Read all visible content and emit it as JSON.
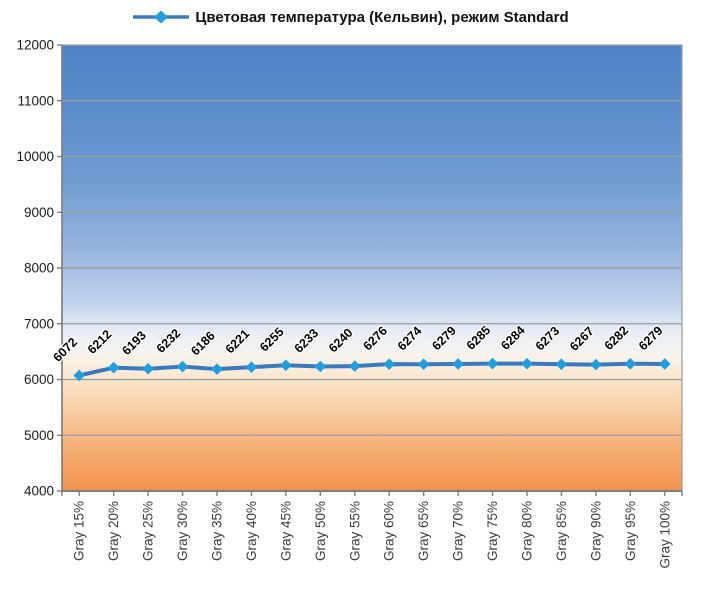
{
  "legend": {
    "label": "Цветовая температура (Кельвин), режим Standard"
  },
  "chart_data": {
    "type": "line",
    "title": "",
    "legend_position": "top",
    "grid": true,
    "categories": [
      "Gray 15%",
      "Gray 20%",
      "Gray 25%",
      "Gray 30%",
      "Gray 35%",
      "Gray 40%",
      "Gray 45%",
      "Gray 50%",
      "Gray 55%",
      "Gray 60%",
      "Gray 65%",
      "Gray 70%",
      "Gray 75%",
      "Gray 80%",
      "Gray 85%",
      "Gray 90%",
      "Gray 95%",
      "Gray 100%"
    ],
    "series": [
      {
        "name": "Цветовая температура (Кельвин), режим Standard",
        "values": [
          6072,
          6212,
          6193,
          6232,
          6186,
          6221,
          6255,
          6233,
          6240,
          6276,
          6274,
          6279,
          6285,
          6284,
          6273,
          6267,
          6282,
          6279
        ]
      }
    ],
    "ylim": [
      4000,
      12000
    ],
    "ytick_step": 1000,
    "xlabel": "",
    "ylabel": "",
    "line_color": "#3A79BC",
    "marker_color": "#1F9FE0",
    "gridline_color": "#9C9C9C",
    "axis_color": "#7F7F7F",
    "label_color": "#000000",
    "bg_stops": [
      [
        0.0,
        "#4E83C6"
      ],
      [
        0.14,
        "#5B8CCB"
      ],
      [
        0.3,
        "#6F9CD2"
      ],
      [
        0.45,
        "#93B2DE"
      ],
      [
        0.58,
        "#C3D4EC"
      ],
      [
        0.645,
        "#E8EEF7"
      ],
      [
        0.69,
        "#F7F3EE"
      ],
      [
        0.73,
        "#FBEBD8"
      ],
      [
        0.81,
        "#F8D2A9"
      ],
      [
        0.9,
        "#F5AF75"
      ],
      [
        1.0,
        "#F2924D"
      ]
    ]
  }
}
